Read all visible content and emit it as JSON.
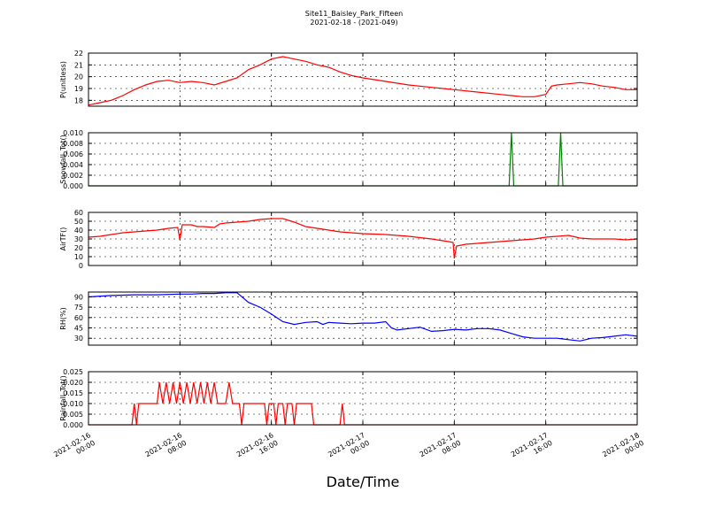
{
  "figure": {
    "title": "Site11_Baisley_Park_Fifteen",
    "subtitle": "2021-02-18 - (2021-049)",
    "xlabel": "Date/Time",
    "x_ticks": [
      {
        "line1": "2021-02-16",
        "line2": "00:00"
      },
      {
        "line1": "2021-02-16",
        "line2": "08:00"
      },
      {
        "line1": "2021-02-16",
        "line2": "16:00"
      },
      {
        "line1": "2021-02-17",
        "line2": "00:00"
      },
      {
        "line1": "2021-02-17",
        "line2": "08:00"
      },
      {
        "line1": "2021-02-17",
        "line2": "16:00"
      },
      {
        "line1": "2021-02-18",
        "line2": "00:00"
      }
    ],
    "xlim_hours": [
      0,
      48
    ],
    "grid": true
  },
  "chart_data": [
    {
      "type": "line",
      "ylabel": "P(unitless)",
      "color": "#ff0000",
      "ylim": [
        17.5,
        22
      ],
      "yticks": [
        "18",
        "19",
        "20",
        "21",
        "22"
      ],
      "ytick_values": [
        18,
        19,
        20,
        21,
        22
      ],
      "x_hours": [
        0,
        1,
        2,
        3,
        4,
        5,
        6,
        7,
        8,
        9,
        10,
        11,
        12,
        13,
        14,
        15,
        16,
        17,
        18,
        19,
        20,
        21,
        22,
        23,
        24,
        26,
        28,
        30,
        32,
        34,
        36,
        37,
        38,
        39,
        40,
        40.5,
        41,
        42,
        43,
        44,
        45,
        46,
        47,
        48
      ],
      "y": [
        17.6,
        17.8,
        18.0,
        18.4,
        18.9,
        19.3,
        19.6,
        19.7,
        19.5,
        19.6,
        19.5,
        19.3,
        19.6,
        19.9,
        20.6,
        21.0,
        21.5,
        21.7,
        21.5,
        21.3,
        21.0,
        20.8,
        20.4,
        20.1,
        19.9,
        19.6,
        19.3,
        19.1,
        18.9,
        18.7,
        18.5,
        18.4,
        18.3,
        18.3,
        18.5,
        19.2,
        19.3,
        19.4,
        19.5,
        19.4,
        19.2,
        19.1,
        18.9,
        18.9
      ]
    },
    {
      "type": "line",
      "ylabel": "Snowfall_Tot()",
      "color": "#008000",
      "ylim": [
        0,
        0.01
      ],
      "yticks": [
        "0.000",
        "0.002",
        "0.004",
        "0.006",
        "0.008",
        "0.010"
      ],
      "ytick_values": [
        0,
        0.002,
        0.004,
        0.006,
        0.008,
        0.01
      ],
      "x_hours": [
        0,
        36.8,
        37.0,
        37.2,
        41.1,
        41.3,
        41.5,
        48
      ],
      "y": [
        0,
        0,
        0.01,
        0,
        0,
        0.01,
        0,
        0
      ]
    },
    {
      "type": "line",
      "ylabel": "AirTF()",
      "color": "#ff0000",
      "ylim": [
        0,
        60
      ],
      "yticks": [
        "0",
        "10",
        "20",
        "30",
        "40",
        "50",
        "60"
      ],
      "ytick_values": [
        0,
        10,
        20,
        30,
        40,
        50,
        60
      ],
      "x_hours": [
        0,
        1,
        2,
        3,
        4,
        5,
        6,
        7,
        7.8,
        8,
        8.2,
        9,
        9.5,
        10,
        11,
        11.5,
        12,
        13,
        14,
        15,
        16,
        17,
        18,
        19,
        20,
        21,
        22,
        24,
        26,
        28,
        30,
        31.5,
        31.9,
        32,
        32.2,
        33,
        34,
        35,
        36,
        37,
        38,
        39,
        40,
        41,
        42,
        43,
        44,
        45,
        46,
        47,
        48
      ],
      "y": [
        32,
        33,
        35,
        37,
        38,
        39,
        40,
        42,
        43,
        29,
        46,
        46,
        44,
        44,
        43,
        47,
        48,
        49,
        50,
        52,
        53,
        53,
        49,
        44,
        42,
        40,
        38,
        36,
        35,
        33,
        30,
        27,
        26,
        8,
        22,
        24,
        25,
        26,
        27,
        28,
        29,
        30,
        32,
        33,
        34,
        31,
        30,
        30,
        30,
        29,
        30
      ]
    },
    {
      "type": "line",
      "ylabel": "RH(%)",
      "color": "#0000ff",
      "ylim": [
        20,
        97
      ],
      "yticks": [
        "30",
        "45",
        "60",
        "75",
        "90"
      ],
      "ytick_values": [
        30,
        45,
        60,
        75,
        90
      ],
      "x_hours": [
        0,
        2,
        4,
        6,
        8,
        9,
        10,
        11,
        12,
        13,
        14,
        15,
        16,
        17,
        18,
        19,
        20,
        20.5,
        21,
        22,
        23,
        24,
        25,
        26,
        26.5,
        27,
        28,
        29,
        30,
        31,
        32,
        33,
        34,
        35,
        36,
        37,
        38,
        39,
        40,
        41,
        42,
        43,
        44,
        45,
        46,
        47,
        48
      ],
      "y": [
        90,
        92,
        93,
        93,
        94,
        94,
        95,
        95,
        96,
        96,
        82,
        75,
        65,
        54,
        50,
        53,
        54,
        50,
        53,
        52,
        51,
        52,
        52,
        54,
        45,
        42,
        44,
        46,
        40,
        41,
        43,
        42,
        44,
        44,
        42,
        37,
        32,
        30,
        30,
        30,
        28,
        26,
        30,
        31,
        33,
        35,
        33
      ]
    },
    {
      "type": "line",
      "ylabel": "Rainfall_Tot()",
      "color": "#ff0000",
      "ylim": [
        0,
        0.025
      ],
      "yticks": [
        "0.000",
        "0.005",
        "0.010",
        "0.015",
        "0.020",
        "0.025"
      ],
      "ytick_values": [
        0,
        0.005,
        0.01,
        0.015,
        0.02,
        0.025
      ],
      "x_hours": [
        0,
        3.8,
        4.0,
        4.2,
        4.4,
        6.0,
        6.2,
        6.5,
        6.8,
        7.1,
        7.4,
        7.7,
        8.0,
        8.3,
        8.6,
        8.9,
        9.2,
        9.5,
        9.8,
        10.1,
        10.4,
        10.7,
        11.0,
        11.3,
        11.6,
        12.0,
        12.3,
        12.6,
        13.2,
        13.4,
        13.6,
        15.4,
        15.6,
        15.8,
        16.2,
        16.4,
        16.6,
        17.0,
        17.2,
        17.4,
        17.8,
        18.0,
        18.2,
        19.5,
        19.7,
        19.9,
        22.0,
        22.2,
        22.4,
        48
      ],
      "y": [
        0,
        0,
        0.01,
        0,
        0.01,
        0.01,
        0.02,
        0.01,
        0.02,
        0.01,
        0.02,
        0.01,
        0.02,
        0.01,
        0.02,
        0.01,
        0.02,
        0.01,
        0.02,
        0.01,
        0.02,
        0.01,
        0.02,
        0.01,
        0.01,
        0.01,
        0.02,
        0.01,
        0.01,
        0,
        0.01,
        0.01,
        0,
        0.01,
        0.01,
        0,
        0.01,
        0.01,
        0,
        0.01,
        0.01,
        0,
        0.01,
        0.01,
        0,
        0,
        0,
        0.01,
        0,
        0
      ]
    }
  ]
}
